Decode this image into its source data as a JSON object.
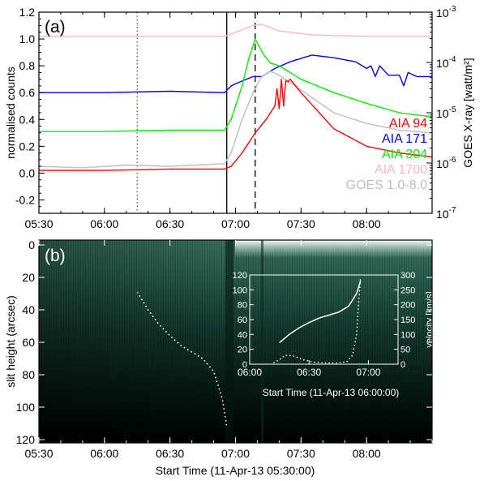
{
  "figure": {
    "panel_a_tag": "(a)",
    "panel_b_tag": "(b)",
    "curve_colors": {
      "AIA 94": "#ff0000",
      "AIA 171": "#0000ff",
      "AIA 304": "#00ee00",
      "AIA 1700": "#ffb6c1",
      "GOES 1.0-8.0": "#bdbdbd"
    },
    "image_colormap": [
      "#000000",
      "#1f5d4b",
      "#bfe8dc",
      "#ffffff"
    ]
  },
  "chart_data": [
    {
      "id": "panel-a",
      "type": "line",
      "ylabel": "normalised counts",
      "y2label": "GOES X-ray [watt/m²]",
      "xlim": [
        "05:30",
        "08:30"
      ],
      "ylim": [
        -0.3,
        1.2
      ],
      "y2lim_log10": [
        -7,
        -3
      ],
      "xticks": [
        "05:30",
        "06:00",
        "06:30",
        "07:00",
        "07:30",
        "08:00"
      ],
      "yticks": [
        "-0.2",
        "0.0",
        "0.2",
        "0.4",
        "0.6",
        "0.8",
        "1.0",
        "1.2"
      ],
      "y2ticks": [
        {
          "value": -7,
          "base": "10",
          "exp": "-7"
        },
        {
          "value": -6,
          "base": "10",
          "exp": "-6"
        },
        {
          "value": -5,
          "base": "10",
          "exp": "-5"
        },
        {
          "value": -4,
          "base": "10",
          "exp": "-4"
        },
        {
          "value": -3,
          "base": "10",
          "exp": "-3"
        }
      ],
      "vlines": [
        {
          "time": "06:15",
          "style": "dotted"
        },
        {
          "time": "06:56",
          "style": "solid"
        },
        {
          "time": "07:09",
          "style": "dashed"
        }
      ],
      "legend_placement": "lower-right",
      "series": [
        {
          "name": "AIA 94",
          "color": "#ff0000",
          "x": [
            "05:30",
            "06:00",
            "06:30",
            "06:55",
            "06:58",
            "07:03",
            "07:09",
            "07:14",
            "07:18",
            "07:19",
            "07:20",
            "07:21",
            "07:22",
            "07:23",
            "07:24",
            "07:25",
            "07:30",
            "07:45",
            "08:00",
            "08:15",
            "08:30"
          ],
          "y": [
            0.02,
            0.02,
            0.03,
            0.03,
            0.05,
            0.15,
            0.3,
            0.4,
            0.5,
            0.63,
            0.48,
            0.7,
            0.5,
            0.69,
            0.68,
            0.7,
            0.6,
            0.33,
            0.2,
            0.15,
            0.12
          ]
        },
        {
          "name": "AIA 171",
          "color": "#0000ff",
          "x": [
            "05:30",
            "06:00",
            "06:30",
            "06:55",
            "06:58",
            "07:02",
            "07:08",
            "07:12",
            "07:18",
            "07:25",
            "07:35",
            "07:45",
            "07:55",
            "08:00",
            "08:02",
            "08:04",
            "08:06",
            "08:10",
            "08:15",
            "08:17",
            "08:19",
            "08:23",
            "08:30"
          ],
          "y": [
            0.6,
            0.6,
            0.61,
            0.6,
            0.65,
            0.68,
            0.72,
            0.72,
            0.78,
            0.83,
            0.88,
            0.86,
            0.83,
            0.78,
            0.8,
            0.72,
            0.8,
            0.73,
            0.73,
            0.65,
            0.75,
            0.72,
            0.72
          ]
        },
        {
          "name": "AIA 304",
          "color": "#00ee00",
          "x": [
            "05:30",
            "06:00",
            "06:30",
            "06:55",
            "06:58",
            "07:03",
            "07:06",
            "07:09",
            "07:13",
            "07:16",
            "07:20",
            "07:30",
            "07:45",
            "08:00",
            "08:15",
            "08:30"
          ],
          "y": [
            0.31,
            0.31,
            0.32,
            0.32,
            0.4,
            0.65,
            0.85,
            1.0,
            0.88,
            0.82,
            0.8,
            0.7,
            0.6,
            0.52,
            0.45,
            0.42
          ]
        },
        {
          "name": "AIA 1700",
          "color": "#ffb6c1",
          "x": [
            "05:30",
            "06:00",
            "06:30",
            "06:55",
            "07:00",
            "07:08",
            "07:12",
            "07:20",
            "07:35",
            "08:00",
            "08:30"
          ],
          "y": [
            1.02,
            1.02,
            1.02,
            1.02,
            1.05,
            1.1,
            1.11,
            1.06,
            1.03,
            1.02,
            1.02
          ]
        },
        {
          "name": "GOES 1.0-8.0",
          "color": "#bdbdbd",
          "x": [
            "05:30",
            "05:50",
            "06:10",
            "06:30",
            "06:55",
            "06:58",
            "07:03",
            "07:08",
            "07:12",
            "07:16",
            "07:20",
            "07:30",
            "07:45",
            "08:00",
            "08:15",
            "08:30"
          ],
          "y": [
            0.05,
            0.04,
            0.06,
            0.05,
            0.07,
            0.15,
            0.4,
            0.6,
            0.72,
            0.76,
            0.73,
            0.62,
            0.45,
            0.37,
            0.32,
            0.3
          ]
        }
      ]
    },
    {
      "id": "panel-b",
      "type": "heatmap",
      "xlabel": "Start Time (11-Apr-13 05:30:00)",
      "ylabel": "slit height (arcsec)",
      "xlim": [
        "05:30",
        "08:30"
      ],
      "ylim": [
        0,
        122
      ],
      "xticks": [
        "05:30",
        "06:00",
        "06:30",
        "07:00",
        "07:30",
        "08:00"
      ],
      "yticks": [
        "0",
        "20",
        "40",
        "60",
        "80",
        "100",
        "120"
      ],
      "tracked_feature": {
        "style": "dotted",
        "color": "#ffffff",
        "x": [
          "06:15",
          "06:20",
          "06:25",
          "06:30",
          "06:35",
          "06:40",
          "06:45",
          "06:50",
          "06:54",
          "06:56"
        ],
        "y": [
          29,
          40,
          49,
          56,
          62,
          66,
          70,
          78,
          95,
          112
        ]
      }
    },
    {
      "id": "panel-b-inset",
      "type": "line",
      "xlabel": "Start Time (11-Apr-13 06:00:00)",
      "y2label": "velocity [km/s]",
      "xlim": [
        "06:00",
        "07:15"
      ],
      "ylim": [
        0,
        120
      ],
      "y2lim": [
        0,
        300
      ],
      "xticks": [
        "06:00",
        "06:30",
        "07:00"
      ],
      "yticks": [
        "0",
        "20",
        "40",
        "60",
        "80",
        "100",
        "120"
      ],
      "y2ticks": [
        "0",
        "50",
        "100",
        "150",
        "200",
        "250",
        "300"
      ],
      "series": [
        {
          "style": "solid",
          "color": "#ffffff",
          "x": [
            "06:15",
            "06:20",
            "06:25",
            "06:30",
            "06:35",
            "06:40",
            "06:45",
            "06:50",
            "06:54",
            "06:55",
            "06:56"
          ],
          "y": [
            29,
            40,
            49,
            56,
            62,
            66,
            70,
            78,
            95,
            103,
            112
          ]
        },
        {
          "style": "dotted",
          "color": "#ffffff",
          "x": [
            "06:12",
            "06:15",
            "06:18",
            "06:22",
            "06:27",
            "06:32",
            "06:38",
            "06:44",
            "06:49",
            "06:52",
            "06:54",
            "06:55",
            "06:56"
          ],
          "y": [
            5,
            15,
            30,
            28,
            15,
            7,
            4,
            4,
            8,
            30,
            100,
            200,
            290
          ]
        }
      ]
    }
  ]
}
